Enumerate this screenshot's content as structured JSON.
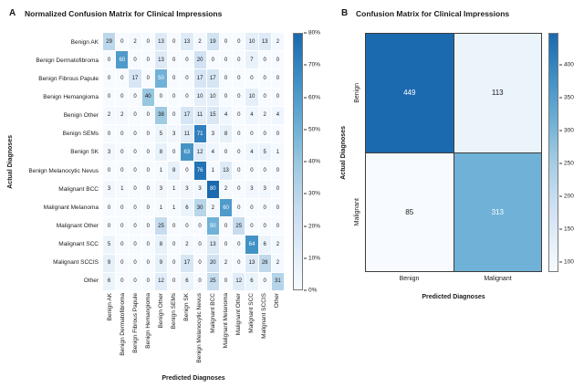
{
  "figure": {
    "background": "#ffffff",
    "accent_color": "#1b69af"
  },
  "chart_data": [
    {
      "type": "heatmap",
      "panel_label": "A",
      "title": "Normalized Confusion Matrix for Clinical Impressions",
      "xlabel": "Predicted Diagnoses",
      "ylabel": "Actual Diagnoses",
      "colormap": "Blues",
      "legend_position": "right-colorbar",
      "categories": [
        "Benign AK",
        "Benign Dermatofibroma",
        "Benign Fibrous Papule",
        "Benign Hemangioma",
        "Benign Other",
        "Benign SEMs",
        "Benign SK",
        "Benign Melanocytic Nevus",
        "Malignant BCC",
        "Malignant Melanoma",
        "Malignant Other",
        "Malignant SCC",
        "Malignant SCCIS",
        "Other"
      ],
      "values": [
        [
          29,
          0,
          2,
          0,
          13,
          0,
          13,
          2,
          19,
          0,
          0,
          10,
          13,
          2
        ],
        [
          0,
          60,
          0,
          0,
          13,
          0,
          0,
          20,
          0,
          0,
          0,
          7,
          0,
          0
        ],
        [
          0,
          0,
          17,
          0,
          50,
          0,
          0,
          17,
          17,
          0,
          0,
          0,
          0,
          0
        ],
        [
          0,
          0,
          0,
          40,
          0,
          0,
          0,
          10,
          10,
          0,
          0,
          10,
          0,
          0
        ],
        [
          2,
          2,
          0,
          0,
          38,
          0,
          17,
          11,
          15,
          4,
          0,
          4,
          2,
          4
        ],
        [
          0,
          0,
          0,
          0,
          5,
          3,
          11,
          71,
          3,
          8,
          0,
          0,
          0,
          0
        ],
        [
          3,
          0,
          0,
          0,
          8,
          0,
          63,
          12,
          4,
          0,
          0,
          4,
          5,
          1
        ],
        [
          0,
          0,
          0,
          0,
          1,
          8,
          0,
          76,
          1,
          13,
          0,
          0,
          0,
          0
        ],
        [
          3,
          1,
          0,
          0,
          3,
          1,
          3,
          3,
          80,
          2,
          0,
          3,
          3,
          0
        ],
        [
          0,
          0,
          0,
          0,
          1,
          1,
          6,
          30,
          2,
          60,
          0,
          0,
          0,
          0
        ],
        [
          0,
          0,
          0,
          0,
          25,
          0,
          0,
          0,
          50,
          0,
          25,
          0,
          0,
          0
        ],
        [
          5,
          0,
          0,
          0,
          8,
          0,
          2,
          0,
          13,
          0,
          0,
          64,
          6,
          2
        ],
        [
          9,
          0,
          0,
          0,
          9,
          0,
          17,
          0,
          20,
          2,
          0,
          13,
          28,
          2
        ],
        [
          6,
          0,
          0,
          0,
          12,
          0,
          6,
          0,
          25,
          0,
          12,
          6,
          0,
          31
        ]
      ],
      "vmin": 0,
      "vmax": 80,
      "colorbar_ticks": [
        80,
        70,
        60,
        50,
        40,
        30,
        20,
        10,
        0
      ],
      "colorbar_tick_suffix": "%"
    },
    {
      "type": "heatmap",
      "panel_label": "B",
      "title": "Confusion Matrix for Clinical Impressions",
      "xlabel": "Predicted Diagnoses",
      "ylabel": "Actual Diagnoses",
      "colormap": "Blues",
      "legend_position": "right-colorbar",
      "categories": [
        "Benign",
        "Malignant"
      ],
      "values": [
        [
          449,
          113
        ],
        [
          85,
          313
        ]
      ],
      "vmin": 85,
      "vmax": 449,
      "colorbar_ticks": [
        400,
        350,
        300,
        250,
        200,
        150,
        100
      ],
      "colorbar_tick_suffix": ""
    }
  ]
}
